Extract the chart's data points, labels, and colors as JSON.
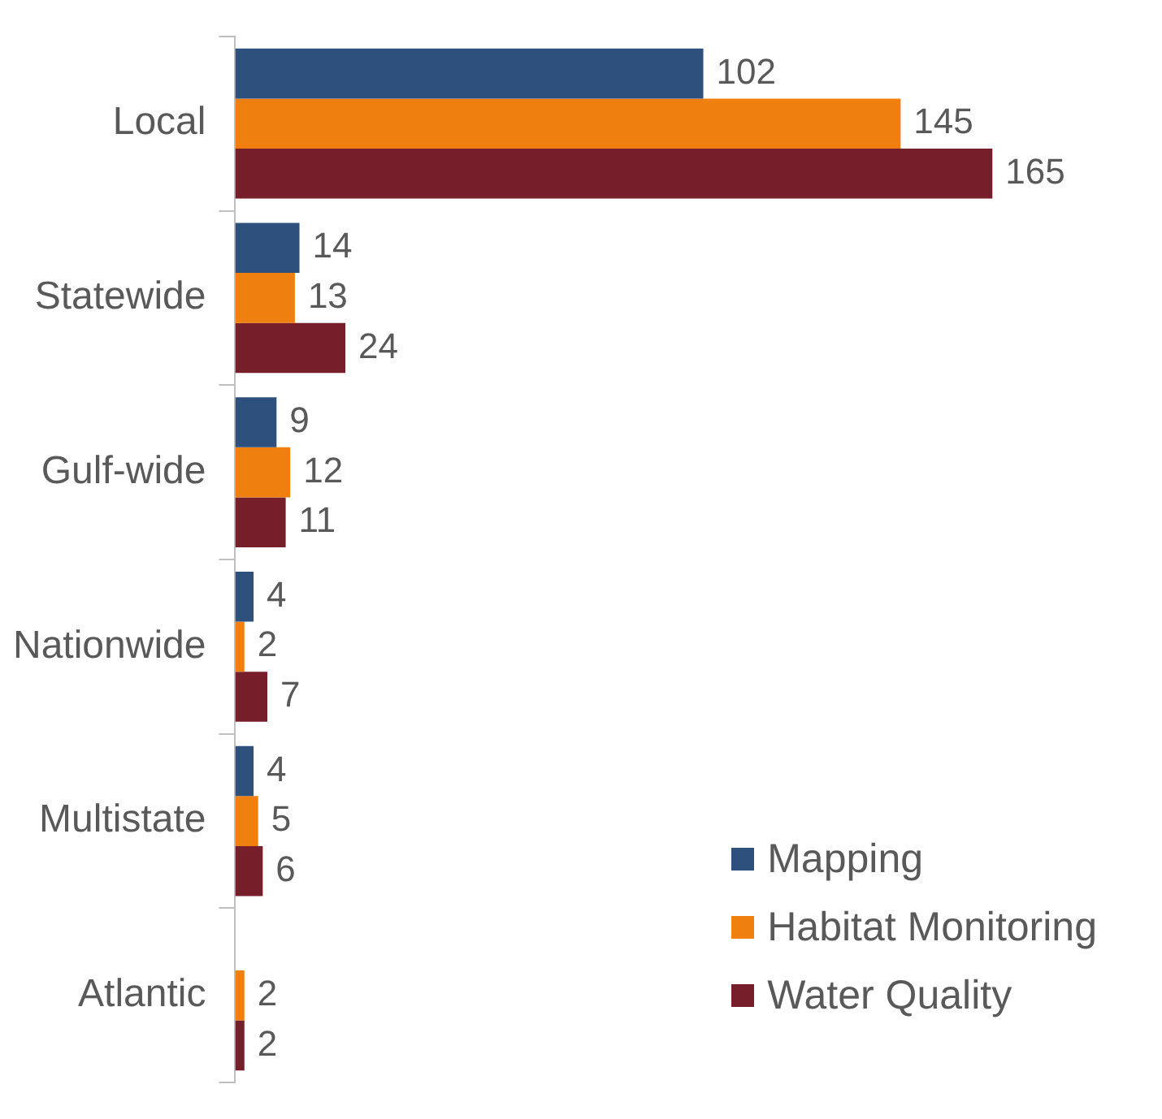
{
  "chart_data": {
    "type": "bar",
    "orientation": "horizontal",
    "categories": [
      "Local",
      "Statewide",
      "Gulf-wide",
      "Nationwide",
      "Multistate",
      "Atlantic"
    ],
    "series": [
      {
        "name": "Mapping",
        "color": "#2e507c",
        "values": [
          102,
          14,
          9,
          4,
          4,
          null
        ]
      },
      {
        "name": "Habitat Monitoring",
        "color": "#ef7f0f",
        "values": [
          145,
          13,
          12,
          2,
          5,
          2
        ]
      },
      {
        "name": "Water Quality",
        "color": "#761e2a",
        "values": [
          165,
          24,
          11,
          7,
          6,
          2
        ]
      }
    ],
    "data_labels": true,
    "grid": false,
    "legend": "bottom right",
    "tick_labels": "y"
  }
}
